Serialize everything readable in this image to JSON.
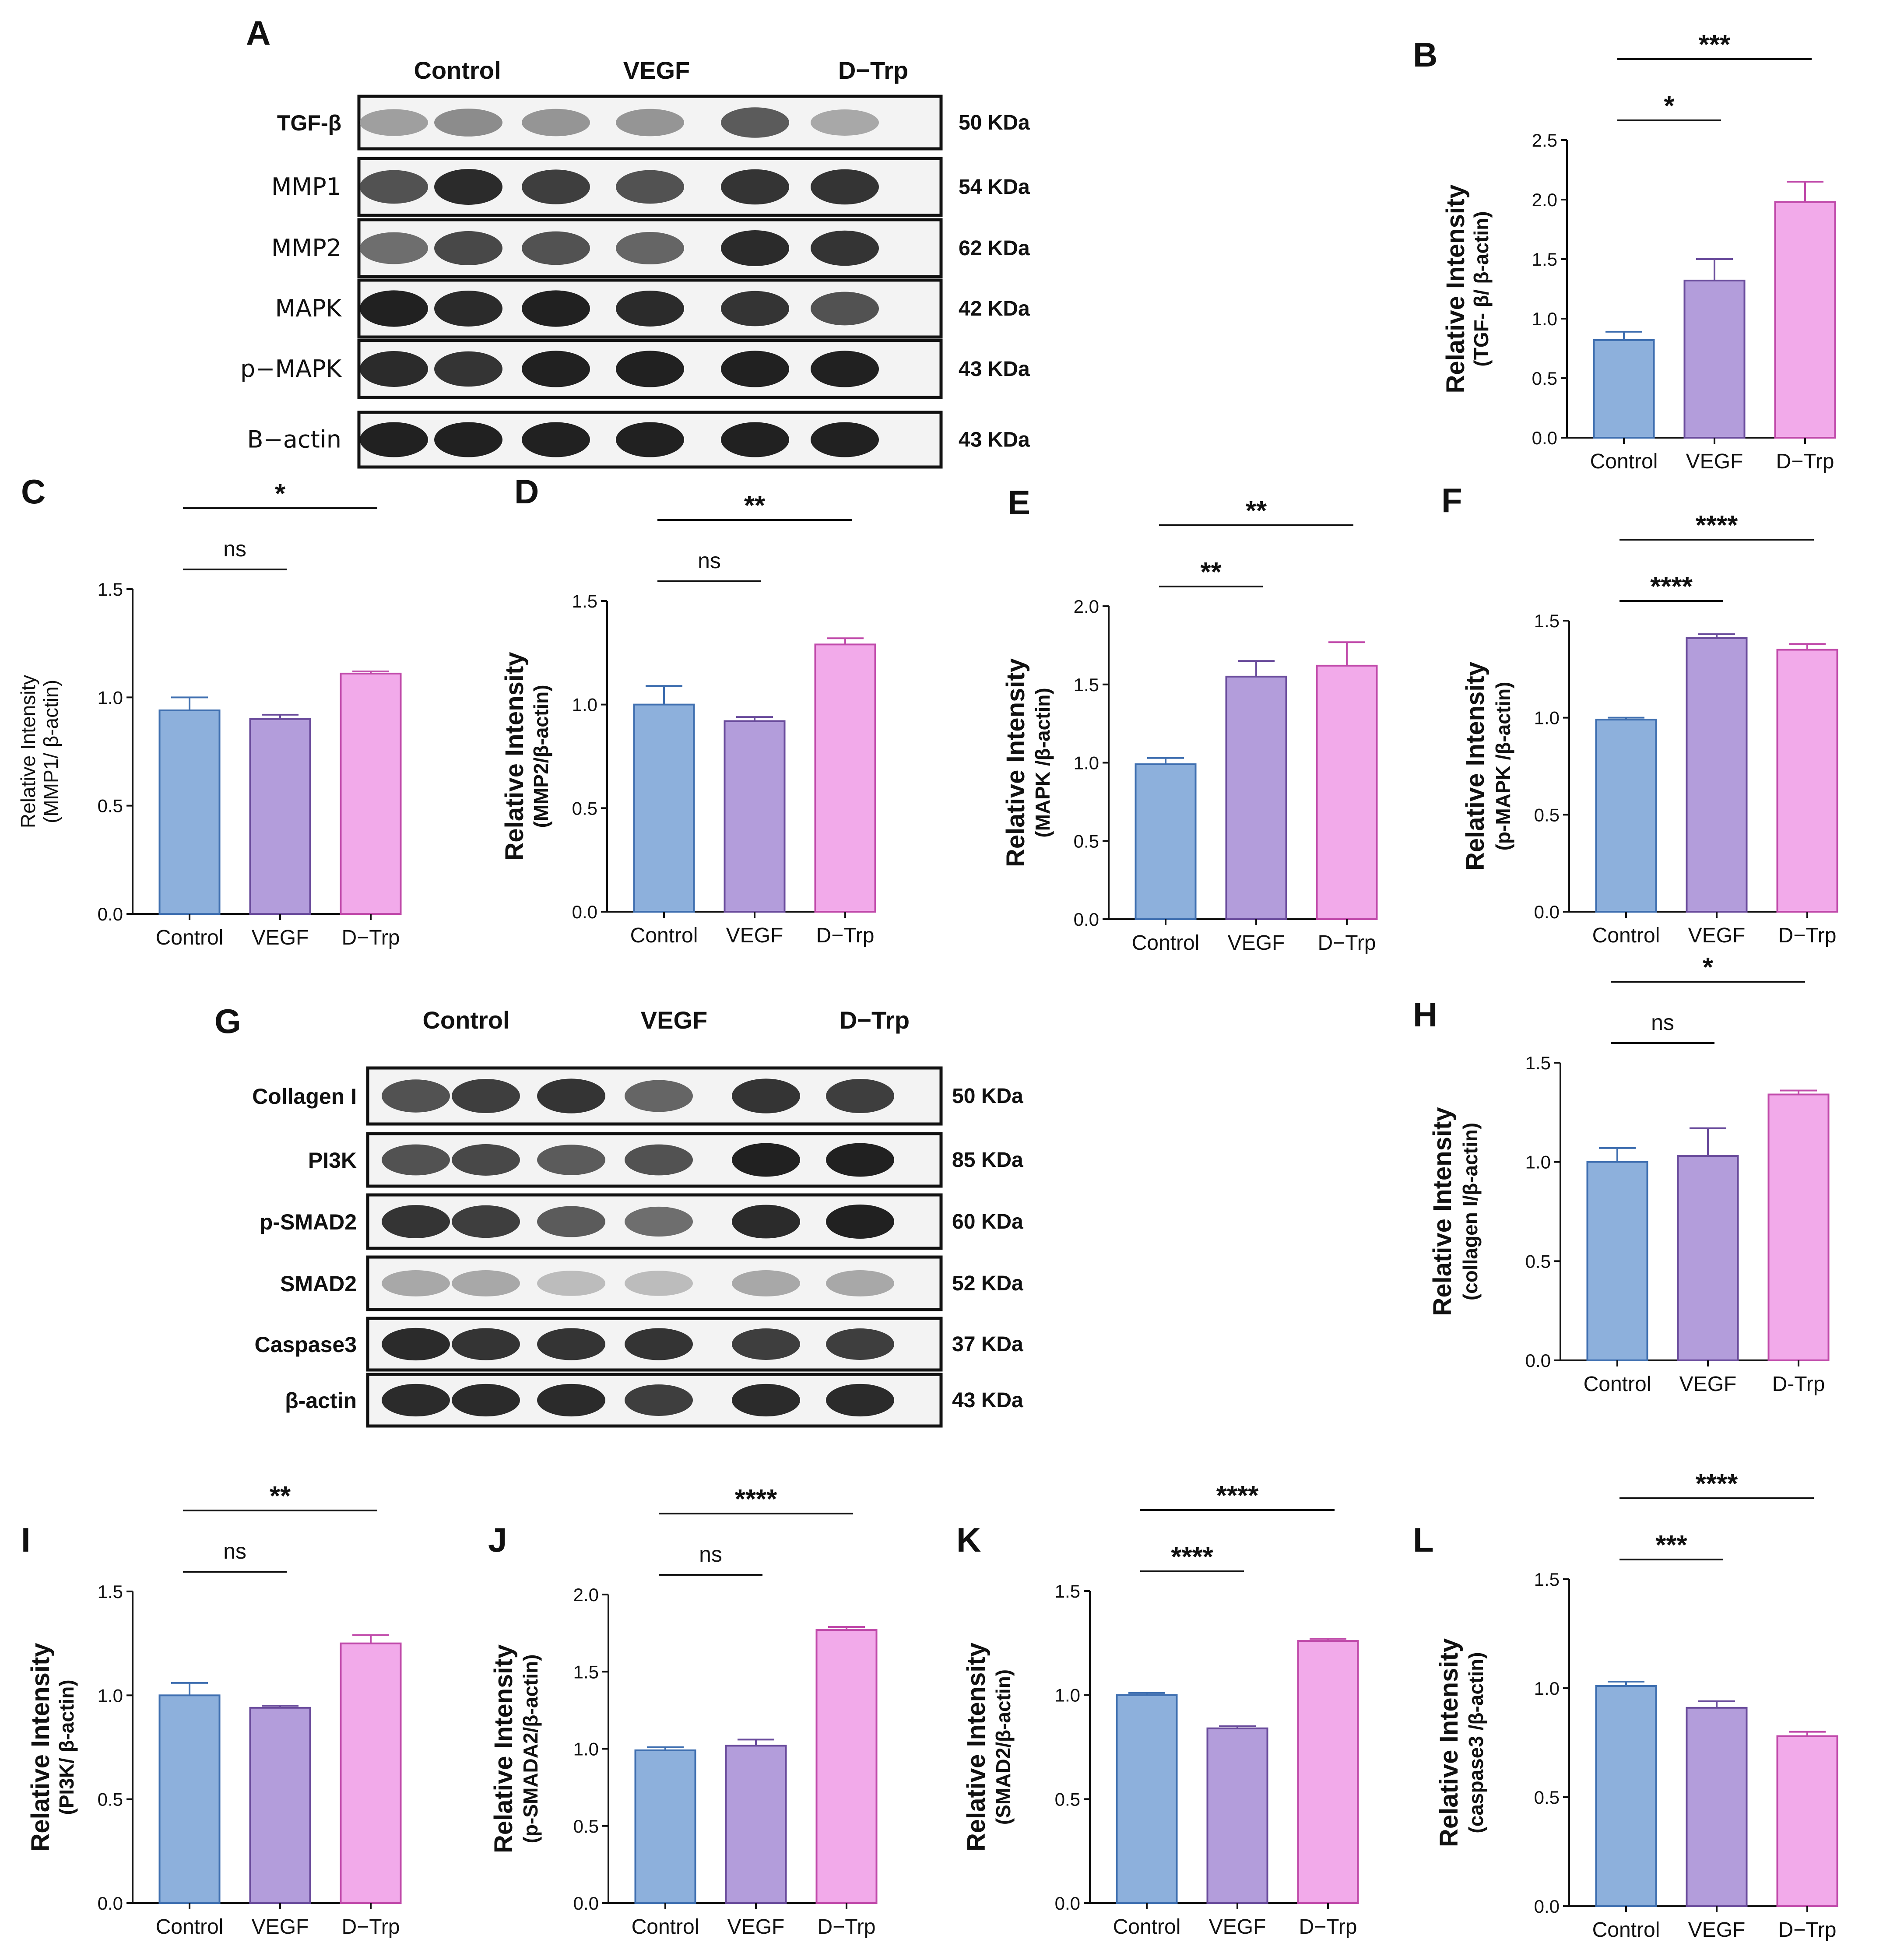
{
  "colors": {
    "control": "#8db0dc",
    "control_edge": "#3f6fb0",
    "vegf": "#b39ddb",
    "vegf_edge": "#6a4c9c",
    "dtrp": "#f2aaea",
    "dtrp_edge": "#c04aaa"
  },
  "blot_A": {
    "letter": "A",
    "groups": [
      "Control",
      "VEGF",
      "D−Trp"
    ],
    "rows": [
      {
        "label": "TGF-β",
        "kda": "50 KDa",
        "style": "bold",
        "intensity": [
          0.35,
          0.45,
          0.4,
          0.4,
          0.7,
          0.3
        ]
      },
      {
        "label": "MMP1",
        "kda": "54 KDa",
        "style": "plain",
        "intensity": [
          0.75,
          0.95,
          0.85,
          0.75,
          0.9,
          0.9
        ]
      },
      {
        "label": "MMP2",
        "kda": "62 KDa",
        "style": "plain",
        "intensity": [
          0.6,
          0.8,
          0.75,
          0.65,
          0.95,
          0.9
        ]
      },
      {
        "label": "MAPK",
        "kda": "42 KDa",
        "style": "plain",
        "intensity": [
          1.0,
          0.95,
          1.0,
          0.95,
          0.9,
          0.75
        ]
      },
      {
        "label": "p−MAPK",
        "kda": "43 KDa",
        "style": "plain",
        "intensity": [
          0.95,
          0.9,
          1.0,
          1.0,
          1.0,
          1.0
        ]
      },
      {
        "label": "B−actin",
        "kda": "43 KDa",
        "style": "plain",
        "intensity": [
          1.0,
          1.0,
          1.0,
          1.0,
          1.0,
          1.0
        ]
      }
    ]
  },
  "blot_G": {
    "letter": "G",
    "groups": [
      "Control",
      "VEGF",
      "D−Trp"
    ],
    "rows": [
      {
        "label": "Collagen I",
        "kda": "50 KDa",
        "style": "bold",
        "intensity": [
          0.75,
          0.85,
          0.9,
          0.65,
          0.9,
          0.85
        ]
      },
      {
        "label": "PI3K",
        "kda": "85 KDa",
        "style": "bold",
        "intensity": [
          0.75,
          0.8,
          0.7,
          0.75,
          1.0,
          1.0
        ]
      },
      {
        "label": "p-SMAD2",
        "kda": "60 KDa",
        "style": "bold",
        "intensity": [
          0.9,
          0.85,
          0.7,
          0.6,
          0.95,
          1.0
        ]
      },
      {
        "label": "SMAD2",
        "kda": "52 KDa",
        "style": "bold",
        "intensity": [
          0.3,
          0.3,
          0.2,
          0.2,
          0.3,
          0.3
        ]
      },
      {
        "label": "Caspase3",
        "kda": "37 KDa",
        "style": "bold",
        "intensity": [
          0.95,
          0.9,
          0.9,
          0.9,
          0.85,
          0.85
        ]
      },
      {
        "label": "β-actin",
        "kda": "43 KDa",
        "style": "bold",
        "intensity": [
          0.95,
          0.95,
          0.95,
          0.85,
          0.95,
          0.95
        ]
      }
    ]
  },
  "chart_data": [
    {
      "id": "B",
      "type": "bar",
      "categories": [
        "Control",
        "VEGF",
        "D−Trp"
      ],
      "values": [
        0.82,
        1.32,
        1.98
      ],
      "errors": [
        0.07,
        0.18,
        0.17
      ],
      "ylim": [
        0,
        2.5
      ],
      "yticks": [
        "0.0",
        "0.5",
        "1.0",
        "1.5",
        "2.0",
        "2.5"
      ],
      "ylabel": "Relative  Intensity",
      "ylabel2": "(TGF- β/ β-actin)",
      "comparisons": [
        {
          "label": "*",
          "from": 0,
          "to": 1
        },
        {
          "label": "***",
          "from": 0,
          "to": 2
        }
      ]
    },
    {
      "id": "C",
      "type": "bar",
      "categories": [
        "Control",
        "VEGF",
        "D−Trp"
      ],
      "values": [
        0.94,
        0.9,
        1.11
      ],
      "errors": [
        0.06,
        0.02,
        0.01
      ],
      "ylim": [
        0,
        1.5
      ],
      "yticks": [
        "0.0",
        "0.5",
        "1.0",
        "1.5"
      ],
      "ylabel": "Relative  Intensity",
      "ylabel2": "(MMP1/ β-actin)",
      "comparisons": [
        {
          "label": "ns",
          "from": 0,
          "to": 1
        },
        {
          "label": "*",
          "from": 0,
          "to": 2
        }
      ]
    },
    {
      "id": "D",
      "type": "bar",
      "categories": [
        "Control",
        "VEGF",
        "D−Trp"
      ],
      "values": [
        1.0,
        0.92,
        1.29
      ],
      "errors": [
        0.09,
        0.02,
        0.03
      ],
      "ylim": [
        0,
        1.5
      ],
      "yticks": [
        "0.0",
        "0.5",
        "1.0",
        "1.5"
      ],
      "ylabel": "Relative  Intensity",
      "ylabel2": "(MMP2/β-actin)",
      "comparisons": [
        {
          "label": "ns",
          "from": 0,
          "to": 1
        },
        {
          "label": "**",
          "from": 0,
          "to": 2
        }
      ]
    },
    {
      "id": "E",
      "type": "bar",
      "categories": [
        "Control",
        "VEGF",
        "D−Trp"
      ],
      "values": [
        0.99,
        1.55,
        1.62
      ],
      "errors": [
        0.04,
        0.1,
        0.15
      ],
      "ylim": [
        0,
        2.0
      ],
      "yticks": [
        "0.0",
        "0.5",
        "1.0",
        "1.5",
        "2.0"
      ],
      "ylabel": "Relative  Intensity",
      "ylabel2": "(MAPK /β-actin)",
      "comparisons": [
        {
          "label": "**",
          "from": 0,
          "to": 1
        },
        {
          "label": "**",
          "from": 0,
          "to": 2
        }
      ]
    },
    {
      "id": "F",
      "type": "bar",
      "categories": [
        "Control",
        "VEGF",
        "D−Trp"
      ],
      "values": [
        0.99,
        1.41,
        1.35
      ],
      "errors": [
        0.01,
        0.02,
        0.03
      ],
      "ylim": [
        0,
        1.5
      ],
      "yticks": [
        "0.0",
        "0.5",
        "1.0",
        "1.5"
      ],
      "ylabel": "Relative  Intensity",
      "ylabel2": "(p-MAPK /β-actin)",
      "comparisons": [
        {
          "label": "****",
          "from": 0,
          "to": 1
        },
        {
          "label": "****",
          "from": 0,
          "to": 2
        }
      ]
    },
    {
      "id": "H",
      "type": "bar",
      "categories": [
        "Control",
        "VEGF",
        "D-Trp"
      ],
      "values": [
        1.0,
        1.03,
        1.34
      ],
      "errors": [
        0.07,
        0.14,
        0.02
      ],
      "ylim": [
        0,
        1.5
      ],
      "yticks": [
        "0.0",
        "0.5",
        "1.0",
        "1.5"
      ],
      "ylabel": "Relative  Intensity",
      "ylabel2": "(collagen I/β-actin)",
      "comparisons": [
        {
          "label": "ns",
          "from": 0,
          "to": 1
        },
        {
          "label": "*",
          "from": 0,
          "to": 2
        }
      ]
    },
    {
      "id": "I",
      "type": "bar",
      "categories": [
        "Control",
        "VEGF",
        "D−Trp"
      ],
      "values": [
        1.0,
        0.94,
        1.25
      ],
      "errors": [
        0.06,
        0.01,
        0.04
      ],
      "ylim": [
        0,
        1.5
      ],
      "yticks": [
        "0.0",
        "0.5",
        "1.0",
        "1.5"
      ],
      "ylabel": "Relative  Intensity",
      "ylabel2": "(PI3K/ β-actin)",
      "comparisons": [
        {
          "label": "ns",
          "from": 0,
          "to": 1
        },
        {
          "label": "**",
          "from": 0,
          "to": 2
        }
      ]
    },
    {
      "id": "J",
      "type": "bar",
      "categories": [
        "Control",
        "VEGF",
        "D−Trp"
      ],
      "values": [
        0.99,
        1.02,
        1.77
      ],
      "errors": [
        0.02,
        0.04,
        0.02
      ],
      "ylim": [
        0,
        2.0
      ],
      "yticks": [
        "0.0",
        "0.5",
        "1.0",
        "1.5",
        "2.0"
      ],
      "ylabel": "Relative  Intensity",
      "ylabel2": "(p-SMADA2/β-actin)",
      "comparisons": [
        {
          "label": "ns",
          "from": 0,
          "to": 1
        },
        {
          "label": "****",
          "from": 0,
          "to": 2
        }
      ]
    },
    {
      "id": "K",
      "type": "bar",
      "categories": [
        "Control",
        "VEGF",
        "D−Trp"
      ],
      "values": [
        1.0,
        0.84,
        1.26
      ],
      "errors": [
        0.01,
        0.01,
        0.01
      ],
      "ylim": [
        0,
        1.5
      ],
      "yticks": [
        "0.0",
        "0.5",
        "1.0",
        "1.5"
      ],
      "ylabel": "Relative  Intensity",
      "ylabel2": "(SMAD2/β-actin)",
      "comparisons": [
        {
          "label": "****",
          "from": 0,
          "to": 1
        },
        {
          "label": "****",
          "from": 0,
          "to": 2
        }
      ]
    },
    {
      "id": "L",
      "type": "bar",
      "categories": [
        "Control",
        "VEGF",
        "D−Trp"
      ],
      "values": [
        1.01,
        0.91,
        0.78
      ],
      "errors": [
        0.02,
        0.03,
        0.02
      ],
      "ylim": [
        0,
        1.5
      ],
      "yticks": [
        "0.0",
        "0.5",
        "1.0",
        "1.5"
      ],
      "ylabel": "Relative  Intensity",
      "ylabel2": "(caspase3 /β-actin)",
      "comparisons": [
        {
          "label": "***",
          "from": 0,
          "to": 1
        },
        {
          "label": "****",
          "from": 0,
          "to": 2
        }
      ]
    }
  ]
}
